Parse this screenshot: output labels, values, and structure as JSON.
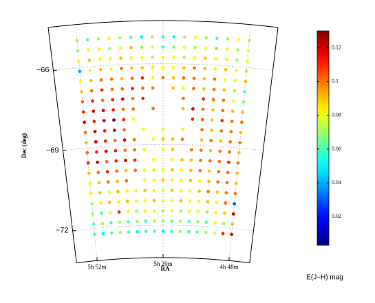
{
  "chart_data": {
    "type": "sky-scatter",
    "xlabel": "RA",
    "ylabel": "Dec (deg)",
    "colorbar_label": "E(J−H) mag",
    "xlim": [
      69.5,
      90.5
    ],
    "ylim": [
      -73.2,
      -64.4
    ],
    "xticks": [
      {
        "value": 88,
        "label": "5h 52m"
      },
      {
        "value": 80,
        "label": "5h 20m"
      },
      {
        "value": 72,
        "label": "4h 48m"
      }
    ],
    "yticks": [
      {
        "value": -66,
        "label": "−66"
      },
      {
        "value": -69,
        "label": "−69"
      },
      {
        "value": -72,
        "label": "−72"
      }
    ],
    "grid": true,
    "colormap": "jet",
    "clim": [
      0.003,
      0.13
    ],
    "colorbar_ticks": [
      0.02,
      0.04,
      0.06,
      0.08,
      0.1,
      0.12
    ],
    "x": [
      88,
      87,
      86,
      85,
      84,
      83,
      82,
      81,
      80,
      79,
      78,
      77,
      76,
      75,
      74,
      73,
      72
    ],
    "y": [
      -65.0,
      -65.38,
      -65.76,
      -66.14,
      -66.52,
      -66.9,
      -67.28,
      -67.66,
      -68.04,
      -68.42,
      -68.8,
      -69.18,
      -69.56,
      -69.94,
      -70.32,
      -70.7,
      -71.08,
      -71.46,
      -71.84,
      -72.22
    ],
    "values": [
      [
        0.07,
        0.06,
        0.07,
        0.08,
        0.07,
        0.06,
        0.05,
        0.07,
        0.06,
        0.05,
        0.07,
        0.08,
        0.07,
        0.06,
        0.07,
        0.08,
        0.07
      ],
      [
        0.07,
        0.08,
        0.08,
        0.07,
        0.08,
        0.09,
        0.07,
        0.08,
        0.06,
        0.07,
        0.08,
        0.07,
        0.08,
        0.09,
        0.08,
        0.07,
        0.08
      ],
      [
        0.08,
        0.09,
        0.08,
        0.08,
        0.09,
        0.08,
        0.08,
        0.07,
        0.08,
        0.08,
        0.07,
        0.08,
        0.09,
        0.08,
        0.08,
        0.07,
        0.08
      ],
      [
        0.04,
        0.08,
        0.09,
        0.08,
        0.1,
        0.09,
        0.09,
        0.08,
        0.08,
        0.08,
        0.09,
        0.1,
        0.09,
        0.08,
        0.09,
        0.08,
        0.07
      ],
      [
        0.08,
        0.09,
        0.1,
        0.1,
        0.09,
        0.1,
        0.11,
        0.08,
        0.1,
        0.09,
        0.1,
        0.1,
        0.09,
        0.1,
        0.08,
        0.08,
        0.09
      ],
      [
        0.09,
        0.1,
        0.11,
        0.1,
        0.1,
        0.11,
        0.1,
        0.1,
        null,
        0.09,
        0.08,
        0.1,
        0.09,
        0.1,
        0.09,
        0.07,
        0.06
      ],
      [
        0.1,
        0.11,
        0.1,
        0.11,
        0.12,
        0.1,
        0.11,
        null,
        null,
        null,
        0.1,
        null,
        0.11,
        0.1,
        0.1,
        0.08,
        0.07
      ],
      [
        0.11,
        0.12,
        0.12,
        0.11,
        0.1,
        0.1,
        null,
        0.1,
        null,
        null,
        0.09,
        0.12,
        0.1,
        0.09,
        0.1,
        0.09,
        0.09
      ],
      [
        0.12,
        0.11,
        0.12,
        0.13,
        0.11,
        0.08,
        null,
        null,
        null,
        null,
        null,
        0.11,
        0.1,
        0.09,
        0.11,
        0.1,
        0.1
      ],
      [
        0.1,
        0.12,
        0.11,
        0.12,
        0.1,
        null,
        0.08,
        null,
        0.08,
        null,
        0.08,
        null,
        0.1,
        0.09,
        0.1,
        0.1,
        0.09
      ],
      [
        0.09,
        0.12,
        0.11,
        0.1,
        0.12,
        0.1,
        null,
        0.08,
        0.09,
        0.09,
        0.1,
        null,
        0.09,
        0.1,
        0.09,
        0.1,
        0.1
      ],
      [
        0.1,
        0.11,
        0.12,
        0.11,
        0.1,
        0.1,
        0.08,
        null,
        0.08,
        0.09,
        null,
        0.1,
        0.1,
        0.09,
        0.1,
        0.1,
        0.09
      ],
      [
        0.11,
        0.12,
        0.1,
        0.11,
        0.12,
        0.11,
        null,
        0.08,
        null,
        0.08,
        0.09,
        0.09,
        0.1,
        0.1,
        0.1,
        0.11,
        0.1
      ],
      [
        0.09,
        0.1,
        0.11,
        0.1,
        0.09,
        0.1,
        0.08,
        0.08,
        0.08,
        0.09,
        0.08,
        0.09,
        0.1,
        0.09,
        0.1,
        0.1,
        0.09
      ],
      [
        0.08,
        0.09,
        0.1,
        0.09,
        0.1,
        null,
        0.08,
        0.08,
        0.09,
        0.08,
        0.08,
        0.09,
        0.08,
        0.09,
        0.1,
        0.1,
        0.09
      ],
      [
        0.08,
        0.09,
        0.08,
        0.09,
        0.08,
        0.08,
        0.09,
        0.08,
        0.08,
        0.09,
        0.08,
        0.08,
        0.09,
        0.1,
        0.09,
        0.1,
        0.1
      ],
      [
        0.07,
        0.08,
        0.09,
        0.08,
        0.09,
        0.08,
        0.08,
        0.09,
        0.08,
        0.08,
        0.09,
        0.08,
        0.08,
        0.09,
        0.08,
        0.1,
        0.03
      ],
      [
        0.07,
        0.06,
        0.08,
        0.11,
        0.08,
        0.07,
        0.08,
        0.08,
        0.07,
        0.08,
        0.07,
        0.08,
        0.08,
        0.07,
        0.08,
        0.09,
        0.12
      ],
      [
        0.06,
        0.07,
        0.06,
        0.07,
        0.06,
        0.07,
        0.06,
        0.07,
        0.07,
        0.06,
        0.07,
        0.06,
        0.07,
        0.06,
        0.08,
        0.07,
        0.09
      ],
      [
        0.06,
        0.05,
        0.06,
        0.07,
        0.06,
        0.05,
        0.06,
        0.06,
        0.05,
        0.06,
        0.07,
        0.06,
        0.06,
        0.07,
        0.08,
        0.11,
        0.12
      ]
    ]
  }
}
